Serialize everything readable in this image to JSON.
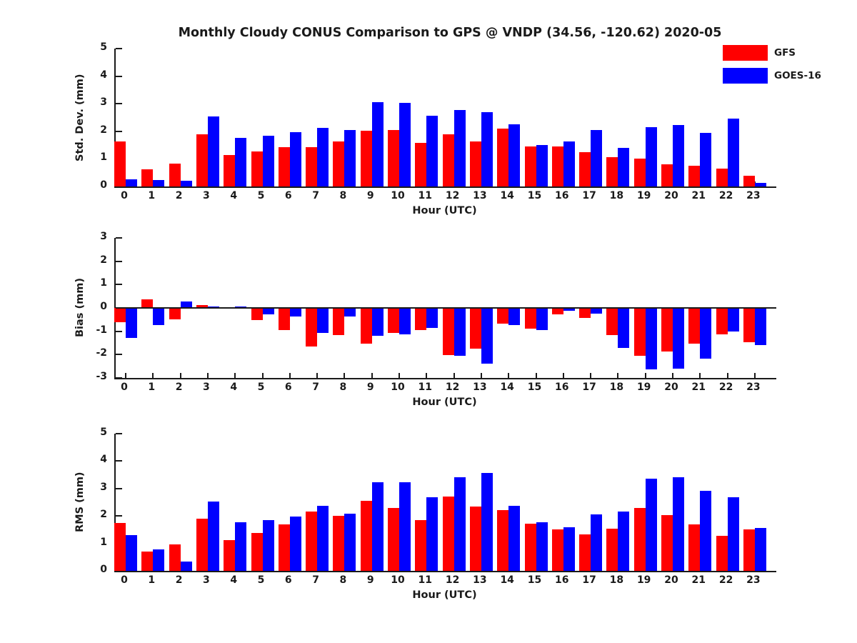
{
  "title": "Monthly Cloudy CONUS Comparison to GPS @ VNDP (34.56, -120.62) 2020-05",
  "legend": {
    "position": "top-right",
    "items": [
      {
        "label": "GFS",
        "color": "#ff0000"
      },
      {
        "label": "GOES-16",
        "color": "#0000ff"
      }
    ]
  },
  "chart_data": [
    {
      "id": "stddev",
      "type": "bar",
      "title": "",
      "ylabel": "Std. Dev. (mm)",
      "xlabel": "Hour (UTC)",
      "ylim": [
        0,
        5
      ],
      "yticks": [
        0,
        1,
        2,
        3,
        4,
        5
      ],
      "grid": false,
      "categories": [
        "0",
        "1",
        "2",
        "3",
        "4",
        "5",
        "6",
        "7",
        "8",
        "9",
        "10",
        "11",
        "12",
        "13",
        "14",
        "15",
        "16",
        "17",
        "18",
        "19",
        "20",
        "21",
        "22",
        "23"
      ],
      "series": [
        {
          "name": "GFS",
          "color": "#ff0000",
          "values": [
            1.62,
            0.63,
            0.84,
            1.9,
            1.13,
            1.28,
            1.43,
            1.43,
            1.63,
            2.02,
            2.04,
            1.57,
            1.89,
            1.63,
            2.09,
            1.45,
            1.45,
            1.24,
            1.05,
            1.02,
            0.8,
            0.76,
            0.65,
            0.38
          ]
        },
        {
          "name": "GOES-16",
          "color": "#0000ff",
          "values": [
            0.25,
            0.24,
            0.2,
            2.55,
            1.76,
            1.83,
            1.97,
            2.13,
            2.04,
            3.05,
            3.02,
            2.56,
            2.77,
            2.69,
            2.25,
            1.49,
            1.62,
            2.04,
            1.4,
            2.14,
            2.24,
            1.94,
            2.47,
            0.12
          ]
        }
      ]
    },
    {
      "id": "bias",
      "type": "bar",
      "title": "",
      "ylabel": "Bias (mm)",
      "xlabel": "Hour (UTC)",
      "ylim": [
        -3,
        3
      ],
      "yticks": [
        -3,
        -2,
        -1,
        0,
        1,
        2,
        3
      ],
      "zero_line": true,
      "grid": false,
      "categories": [
        "0",
        "1",
        "2",
        "3",
        "4",
        "5",
        "6",
        "7",
        "8",
        "9",
        "10",
        "11",
        "12",
        "13",
        "14",
        "15",
        "16",
        "17",
        "18",
        "19",
        "20",
        "21",
        "22",
        "23"
      ],
      "series": [
        {
          "name": "GFS",
          "color": "#ff0000",
          "values": [
            -0.62,
            0.38,
            -0.5,
            0.12,
            0.04,
            -0.52,
            -0.94,
            -1.64,
            -1.17,
            -1.52,
            -1.08,
            -0.95,
            -2.02,
            -1.73,
            -0.68,
            -0.9,
            -0.28,
            -0.42,
            -1.15,
            -2.05,
            -1.88,
            -1.52,
            -1.12,
            -1.47
          ]
        },
        {
          "name": "GOES-16",
          "color": "#0000ff",
          "values": [
            -1.3,
            -0.72,
            0.28,
            0.05,
            0.07,
            -0.28,
            -0.37,
            -1.08,
            -0.38,
            -1.18,
            -1.12,
            -0.87,
            -2.04,
            -2.38,
            -0.72,
            -0.94,
            -0.12,
            -0.25,
            -1.72,
            -2.62,
            -2.6,
            -2.18,
            -1.02,
            -1.58
          ]
        }
      ]
    },
    {
      "id": "rms",
      "type": "bar",
      "title": "",
      "ylabel": "RMS (mm)",
      "xlabel": "Hour (UTC)",
      "ylim": [
        0,
        5
      ],
      "yticks": [
        0,
        1,
        2,
        3,
        4,
        5
      ],
      "grid": false,
      "categories": [
        "0",
        "1",
        "2",
        "3",
        "4",
        "5",
        "6",
        "7",
        "8",
        "9",
        "10",
        "11",
        "12",
        "13",
        "14",
        "15",
        "16",
        "17",
        "18",
        "19",
        "20",
        "21",
        "22",
        "23"
      ],
      "series": [
        {
          "name": "GFS",
          "color": "#ff0000",
          "values": [
            1.74,
            0.7,
            0.97,
            1.9,
            1.12,
            1.39,
            1.7,
            2.16,
            2.01,
            2.54,
            2.29,
            1.85,
            2.72,
            2.34,
            2.21,
            1.71,
            1.5,
            1.34,
            1.53,
            2.28,
            2.03,
            1.68,
            1.28,
            1.51
          ]
        },
        {
          "name": "GOES-16",
          "color": "#0000ff",
          "values": [
            1.29,
            0.77,
            0.33,
            2.52,
            1.77,
            1.84,
            1.97,
            2.37,
            2.09,
            3.24,
            3.22,
            2.67,
            3.42,
            3.58,
            2.36,
            1.77,
            1.6,
            2.05,
            2.16,
            3.36,
            3.4,
            2.91,
            2.68,
            1.56
          ]
        }
      ]
    }
  ]
}
